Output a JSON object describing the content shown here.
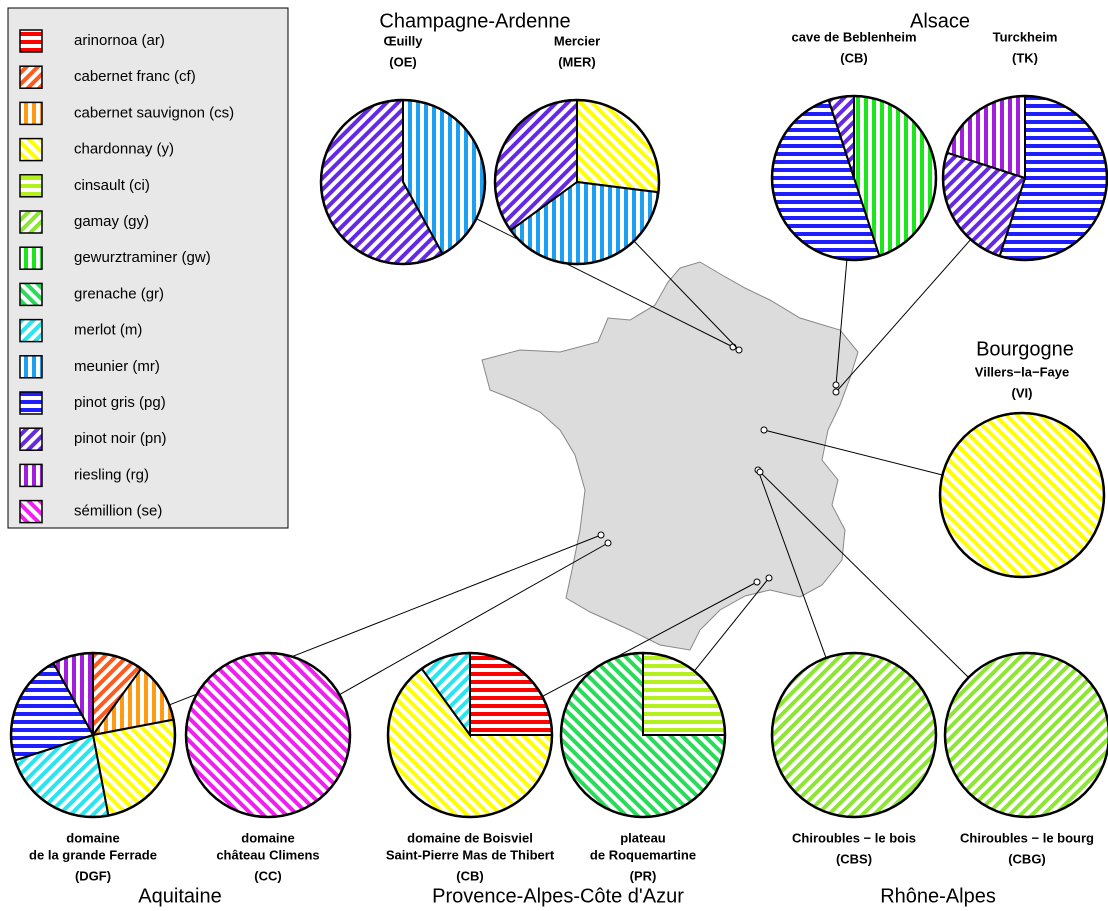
{
  "legend": {
    "names": [
      "arinornoa (ar)",
      "cabernet franc (cf)",
      "cabernet sauvignon (cs)",
      "chardonnay (y)",
      "cinsault (ci)",
      "gamay (gy)",
      "gewurztraminer (gw)",
      "grenache (gr)",
      "merlot (m)",
      "meunier (mr)",
      "pinot gris (pg)",
      "pinot noir (pn)",
      "riesling (rg)",
      "sémillion (se)"
    ],
    "colors": [
      "#ff0000",
      "#ff5a1e",
      "#ff9a14",
      "#ffff00",
      "#b4f01e",
      "#8ce632",
      "#1ee61e",
      "#28dc5a",
      "#28e6f0",
      "#1ea0f0",
      "#1e1eff",
      "#6428e6",
      "#a01edc",
      "#f01ef0"
    ],
    "hatch": [
      "h",
      "d1",
      "v",
      "d2",
      "h",
      "d1",
      "v",
      "d2",
      "d1",
      "v",
      "h",
      "d1",
      "v",
      "d2"
    ]
  },
  "regions": [
    {
      "name": "Champagne-Ardenne",
      "sites": [
        {
          "title": [
            "Œuilly"
          ],
          "code": "(OE)",
          "values": [
            0,
            0,
            0,
            0,
            0,
            0,
            0,
            0,
            0,
            42,
            0,
            58,
            0,
            0
          ]
        },
        {
          "title": [
            "Mercier"
          ],
          "code": "(MER)",
          "values": [
            0,
            0,
            0,
            27,
            0,
            0,
            0,
            0,
            0,
            38,
            0,
            35,
            0,
            0
          ]
        }
      ]
    },
    {
      "name": "Alsace",
      "sites": [
        {
          "title": [
            "cave de Beblenheim"
          ],
          "code": "(CB)",
          "values": [
            0,
            0,
            0,
            0,
            0,
            0,
            45,
            0,
            0,
            0,
            50,
            5,
            0,
            0
          ]
        },
        {
          "title": [
            "Turckheim"
          ],
          "code": "(TK)",
          "values": [
            0,
            0,
            0,
            0,
            0,
            0,
            0,
            0,
            0,
            0,
            55,
            25,
            20,
            0
          ]
        }
      ]
    },
    {
      "name": "Bourgogne",
      "sites": [
        {
          "title": [
            "Villers−la−Faye"
          ],
          "code": "(VI)",
          "values": [
            0,
            0,
            0,
            100,
            0,
            0,
            0,
            0,
            0,
            0,
            0,
            0,
            0,
            0
          ]
        }
      ]
    },
    {
      "name": "Aquitaine",
      "sites": [
        {
          "title": [
            "domaine",
            "de la grande Ferrade"
          ],
          "code": "(DGF)",
          "values": [
            0,
            10,
            12,
            25,
            0,
            0,
            0,
            0,
            23,
            0,
            22,
            0,
            8,
            0
          ]
        },
        {
          "title": [
            "domaine",
            "château Climens"
          ],
          "code": "(CC)",
          "values": [
            0,
            0,
            0,
            0,
            0,
            0,
            0,
            0,
            0,
            0,
            0,
            0,
            0,
            100
          ]
        }
      ]
    },
    {
      "name": "Provence-Alpes-Côte d'Azur",
      "sites": [
        {
          "title": [
            "domaine de Boisviel",
            "Saint-Pierre Mas de Thibert"
          ],
          "code": "(CB)",
          "values": [
            25,
            0,
            0,
            65,
            0,
            0,
            0,
            0,
            10,
            0,
            0,
            0,
            0,
            0
          ]
        },
        {
          "title": [
            "plateau",
            "de Roquemartine"
          ],
          "code": "(PR)",
          "values": [
            0,
            0,
            0,
            0,
            25,
            0,
            0,
            75,
            0,
            0,
            0,
            0,
            0,
            0
          ]
        }
      ]
    },
    {
      "name": "Rhône-Alpes",
      "sites": [
        {
          "title": [
            "Chiroubles − le bois"
          ],
          "code": "(CBS)",
          "values": [
            0,
            0,
            0,
            0,
            0,
            100,
            0,
            0,
            0,
            0,
            0,
            0,
            0,
            0
          ]
        },
        {
          "title": [
            "Chiroubles − le bourg"
          ],
          "code": "(CBG)",
          "values": [
            0,
            0,
            0,
            0,
            0,
            100,
            0,
            0,
            0,
            0,
            0,
            0,
            0,
            0
          ]
        }
      ]
    }
  ]
}
